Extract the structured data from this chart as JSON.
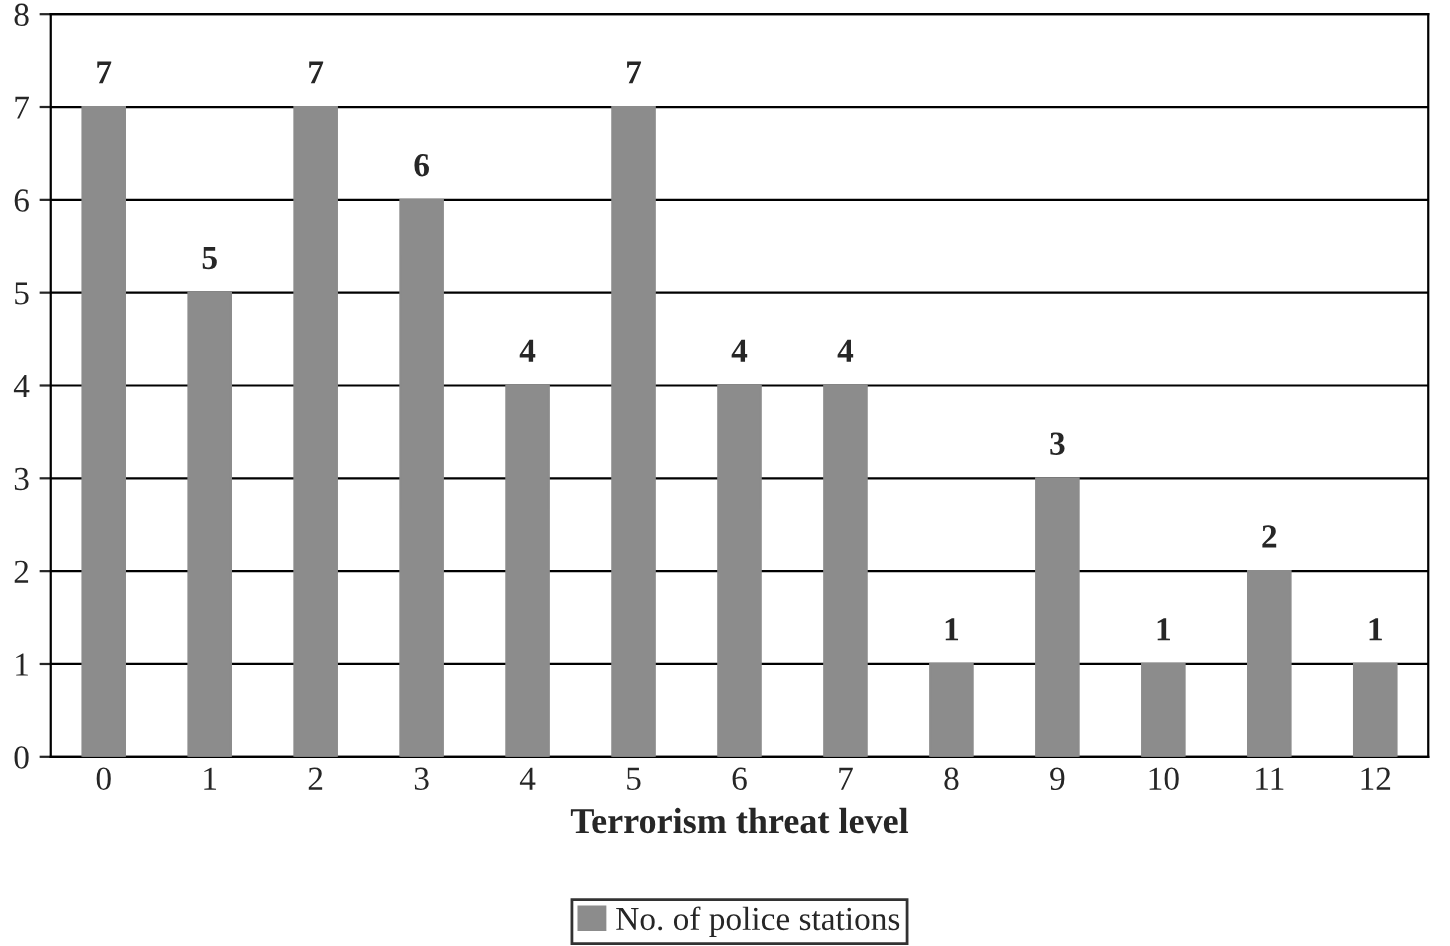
{
  "chart_data": {
    "type": "bar",
    "xlabel": "Terrorism threat level",
    "categories": [
      "0",
      "1",
      "2",
      "3",
      "4",
      "5",
      "6",
      "7",
      "8",
      "9",
      "10",
      "11",
      "12"
    ],
    "series": [
      {
        "name": "No. of police stations",
        "color": "#8c8c8c",
        "values": [
          7,
          5,
          7,
          6,
          4,
          7,
          4,
          4,
          1,
          3,
          1,
          2,
          1
        ]
      }
    ],
    "ylim": [
      0,
      8
    ],
    "yticks": [
      0,
      1,
      2,
      3,
      4,
      5,
      6,
      7,
      8
    ],
    "grid": "y",
    "legend": "bottom",
    "data_labels": true
  }
}
